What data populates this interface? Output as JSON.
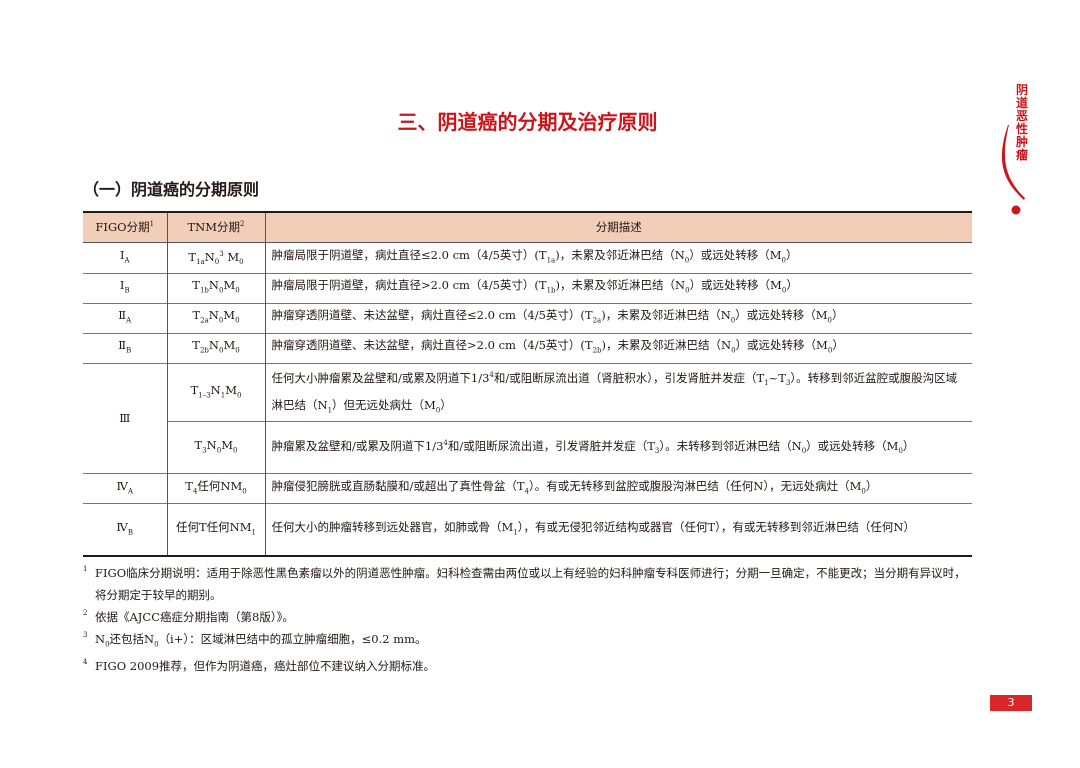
{
  "side_tab": "阴道恶性肿瘤",
  "title": "三、阴道癌的分期及治疗原则",
  "subtitle": "（一）阴道癌的分期原则",
  "table": {
    "headers": [
      "FIGO分期^{1}",
      "TNM分期^{2}",
      "分期描述"
    ],
    "rows": [
      {
        "figo": "Ⅰ_{A}",
        "tnm": "T_{1a}N_{0}^{3} M_{0}",
        "desc": "肿瘤局限于阴道壁，病灶直径≤2.0 cm（4/5英寸）(T_{1a})，未累及邻近淋巴结（N_{0}）或远处转移（M_{0}）"
      },
      {
        "figo": "Ⅰ_{B}",
        "tnm": "T_{1b}N_{0}M_{0}",
        "desc": "肿瘤局限于阴道壁，病灶直径>2.0 cm（4/5英寸）(T_{1b})，未累及邻近淋巴结（N_{0}）或远处转移（M_{0}）"
      },
      {
        "figo": "Ⅱ_{A}",
        "tnm": "T_{2a}N_{0}M_{0}",
        "desc": "肿瘤穿透阴道壁、未达盆壁，病灶直径≤2.0 cm（4/5英寸）(T_{2a})，未累及邻近淋巴结（N_{0}）或远处转移（M_{0}）"
      },
      {
        "figo": "Ⅱ_{B}",
        "tnm": "T_{2b}N_{0}M_{0}",
        "desc": "肿瘤穿透阴道壁、未达盆壁，病灶直径>2.0 cm（4/5英寸）(T_{2b})，未累及邻近淋巴结（N_{0}）或远处转移（M_{0}）"
      },
      {
        "figo": "Ⅲ",
        "tnm": "T_{1–3}N_{1}M_{0}",
        "desc": "任何大小肿瘤累及盆壁和/或累及阴道下1/3^{4}和/或阻断尿流出道（肾脏积水），引发肾脏并发症（T_{1}~T_{3}）。转移到邻近盆腔或腹股沟区域淋巴结（N_{1}）但无远处病灶（M_{0}）"
      },
      {
        "figo": "",
        "tnm": "T_{3}N_{0}M_{0}",
        "desc": "肿瘤累及盆壁和/或累及阴道下1/3^{4}和/或阻断尿流出道，引发肾脏并发症（T_{3}）。未转移到邻近淋巴结（N_{0}）或远处转移（M_{0}）"
      },
      {
        "figo": "Ⅳ_{A}",
        "tnm": "T_{4}任何NM_{0}",
        "desc": "肿瘤侵犯膀胱或直肠黏膜和/或超出了真性骨盆（T_{4}）。有或无转移到盆腔或腹股沟淋巴结（任何N），无远处病灶（M_{0}）"
      },
      {
        "figo": "Ⅳ_{B}",
        "tnm": "任何T任何NM_{1}",
        "desc": "任何大小的肿瘤转移到远处器官，如肺或骨（M_{1}），有或无侵犯邻近结构或器官（任何T），有或无转移到邻近淋巴结（任何N）"
      }
    ]
  },
  "footnotes": [
    {
      "n": "1",
      "text": "FIGO临床分期说明：适用于除恶性黑色素瘤以外的阴道恶性肿瘤。妇科检查需由两位或以上有经验的妇科肿瘤专科医师进行；分期一旦确定，不能更改；当分期有异议时，将分期定于较早的期别。"
    },
    {
      "n": "2",
      "text": "依据《AJCC癌症分期指南（第8版）》。"
    },
    {
      "n": "3",
      "text": "N_{0}还包括N_{0}（i+）：区域淋巴结中的孤立肿瘤细胞，≤0.2 mm。"
    },
    {
      "n": "4",
      "text": "FIGO 2009推荐，但作为阴道癌，癌灶部位不建议纳入分期标准。"
    }
  ],
  "page_number": "3",
  "colors": {
    "accent": "#c8161d",
    "header_bg": "#f2cdb8"
  }
}
